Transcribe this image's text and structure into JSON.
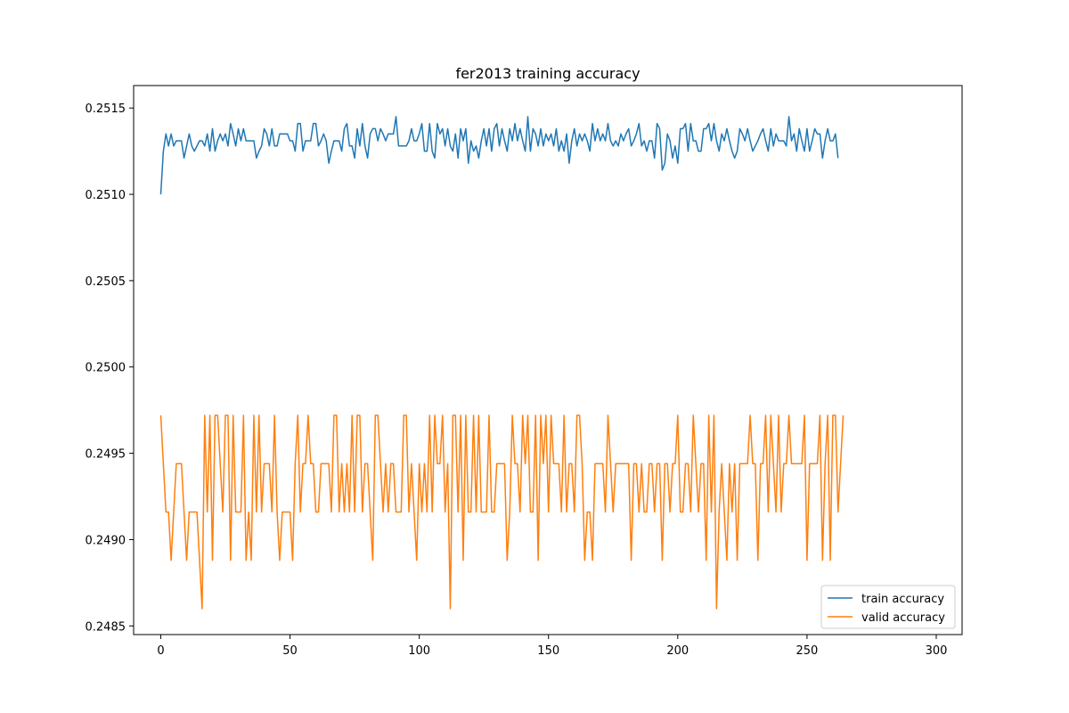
{
  "chart_data": {
    "type": "line",
    "title": "fer2013 training accuracy",
    "xlabel": "",
    "ylabel": "",
    "xlim": [
      -10.5,
      310
    ],
    "ylim": [
      0.24845,
      0.25163
    ],
    "x_ticks": [
      0,
      50,
      100,
      150,
      200,
      250,
      300
    ],
    "y_ticks": [
      0.2485,
      0.249,
      0.2495,
      0.25,
      0.2505,
      0.251,
      0.2515
    ],
    "y_tick_labels": [
      "0.2485",
      "0.2490",
      "0.2495",
      "0.2500",
      "0.2505",
      "0.2510",
      "0.2515"
    ],
    "grid": false,
    "legend_position": "lower-right",
    "series": [
      {
        "name": "train accuracy",
        "color": "#1f77b4",
        "values": [
          0.251,
          0.25125,
          0.25135,
          0.25128,
          0.25135,
          0.25128,
          0.25131,
          0.25131,
          0.25131,
          0.25121,
          0.25128,
          0.25135,
          0.25128,
          0.25125,
          0.25128,
          0.25131,
          0.25131,
          0.25128,
          0.25135,
          0.25125,
          0.25138,
          0.25125,
          0.25131,
          0.25135,
          0.25131,
          0.25135,
          0.25128,
          0.25141,
          0.25135,
          0.25128,
          0.25138,
          0.25131,
          0.25138,
          0.25131,
          0.25131,
          0.25131,
          0.25131,
          0.25121,
          0.25125,
          0.25128,
          0.25138,
          0.25135,
          0.25128,
          0.25138,
          0.25128,
          0.25128,
          0.25135,
          0.25135,
          0.25135,
          0.25135,
          0.25131,
          0.25131,
          0.25125,
          0.25141,
          0.25141,
          0.25125,
          0.25131,
          0.25131,
          0.25131,
          0.25141,
          0.25141,
          0.25128,
          0.25131,
          0.25135,
          0.25131,
          0.25118,
          0.25125,
          0.25131,
          0.25131,
          0.25131,
          0.25125,
          0.25138,
          0.25141,
          0.25128,
          0.25128,
          0.25121,
          0.25138,
          0.25128,
          0.25141,
          0.25128,
          0.25121,
          0.25135,
          0.25138,
          0.25138,
          0.25131,
          0.25138,
          0.25135,
          0.25131,
          0.25135,
          0.25135,
          0.25135,
          0.25145,
          0.25128,
          0.25128,
          0.25128,
          0.25128,
          0.25131,
          0.25138,
          0.25131,
          0.25131,
          0.25135,
          0.25141,
          0.25125,
          0.25125,
          0.25141,
          0.25125,
          0.25121,
          0.25141,
          0.25135,
          0.25138,
          0.25128,
          0.25138,
          0.25128,
          0.25125,
          0.25135,
          0.25121,
          0.25138,
          0.25131,
          0.25138,
          0.25118,
          0.25131,
          0.25125,
          0.25128,
          0.25121,
          0.25131,
          0.25138,
          0.25128,
          0.25138,
          0.25125,
          0.25138,
          0.25141,
          0.25128,
          0.25138,
          0.25131,
          0.25125,
          0.25138,
          0.25131,
          0.25141,
          0.25131,
          0.25138,
          0.25131,
          0.25125,
          0.25145,
          0.25125,
          0.25138,
          0.25135,
          0.25128,
          0.25138,
          0.25128,
          0.25135,
          0.25131,
          0.25135,
          0.25128,
          0.25138,
          0.25125,
          0.25131,
          0.25125,
          0.25135,
          0.25118,
          0.25131,
          0.25138,
          0.25128,
          0.25135,
          0.25131,
          0.25135,
          0.25131,
          0.25125,
          0.25141,
          0.25131,
          0.25138,
          0.25131,
          0.25135,
          0.25131,
          0.25141,
          0.25131,
          0.25128,
          0.25131,
          0.25128,
          0.25135,
          0.25131,
          0.25135,
          0.25138,
          0.25128,
          0.25131,
          0.25135,
          0.25141,
          0.25128,
          0.25131,
          0.25125,
          0.25131,
          0.25131,
          0.25121,
          0.25141,
          0.25138,
          0.25114,
          0.25118,
          0.25135,
          0.25131,
          0.25121,
          0.25128,
          0.25118,
          0.25138,
          0.25138,
          0.25141,
          0.25125,
          0.25141,
          0.25131,
          0.25131,
          0.25125,
          0.25125,
          0.25138,
          0.25138,
          0.25141,
          0.25131,
          0.25141,
          0.25131,
          0.25125,
          0.25135,
          0.25131,
          0.25138,
          0.25131,
          0.25125,
          0.25121,
          0.25125,
          0.25138,
          0.25135,
          0.25131,
          0.25138,
          0.25131,
          0.25125,
          0.25128,
          0.25131,
          0.25135,
          0.25138,
          0.25131,
          0.25125,
          0.25138,
          0.25128,
          0.25135,
          0.25131,
          0.25131,
          0.25131,
          0.25128,
          0.25145,
          0.25131,
          0.25135,
          0.25125,
          0.25138,
          0.25131,
          0.25125,
          0.25138,
          0.25125,
          0.25131,
          0.25138,
          0.25135,
          0.25135,
          0.25121,
          0.25131,
          0.25138,
          0.25131,
          0.25131,
          0.25135,
          0.25121
        ]
      },
      {
        "name": "valid accuracy",
        "color": "#ff7f0e",
        "values": [
          0.24972,
          0.24944,
          0.24916,
          0.24916,
          0.24888,
          0.24916,
          0.24944,
          0.24944,
          0.24944,
          0.24916,
          0.24888,
          0.24916,
          0.24916,
          0.24916,
          0.24916,
          0.24888,
          0.2486,
          0.24972,
          0.24916,
          0.24972,
          0.24888,
          0.24972,
          0.24972,
          0.24944,
          0.24916,
          0.24972,
          0.24972,
          0.24888,
          0.24972,
          0.24916,
          0.24916,
          0.24916,
          0.24972,
          0.24888,
          0.24916,
          0.24888,
          0.24972,
          0.24916,
          0.24972,
          0.24916,
          0.24944,
          0.24944,
          0.24944,
          0.24916,
          0.24972,
          0.24916,
          0.24888,
          0.24916,
          0.24916,
          0.24916,
          0.24916,
          0.24888,
          0.24944,
          0.24972,
          0.24916,
          0.24944,
          0.24944,
          0.24972,
          0.24944,
          0.24944,
          0.24916,
          0.24916,
          0.24944,
          0.24944,
          0.24944,
          0.24944,
          0.24916,
          0.24972,
          0.24972,
          0.24916,
          0.24944,
          0.24916,
          0.24944,
          0.24916,
          0.24972,
          0.24916,
          0.24972,
          0.24972,
          0.24916,
          0.24944,
          0.24944,
          0.24916,
          0.24888,
          0.24972,
          0.24972,
          0.24944,
          0.24916,
          0.24944,
          0.24916,
          0.24944,
          0.24944,
          0.24916,
          0.24916,
          0.24916,
          0.24972,
          0.24972,
          0.24916,
          0.24944,
          0.24916,
          0.24888,
          0.24944,
          0.24916,
          0.24944,
          0.24916,
          0.24972,
          0.24916,
          0.24972,
          0.24944,
          0.24944,
          0.24972,
          0.24916,
          0.24944,
          0.2486,
          0.24972,
          0.24972,
          0.24916,
          0.24972,
          0.24888,
          0.24972,
          0.24916,
          0.24916,
          0.24972,
          0.24916,
          0.24972,
          0.24916,
          0.24916,
          0.24916,
          0.24972,
          0.24916,
          0.24916,
          0.24944,
          0.24944,
          0.24944,
          0.24944,
          0.24888,
          0.24916,
          0.24972,
          0.24944,
          0.24944,
          0.24916,
          0.24972,
          0.24944,
          0.24972,
          0.24916,
          0.24916,
          0.24972,
          0.24888,
          0.24972,
          0.24944,
          0.24972,
          0.24916,
          0.24972,
          0.24944,
          0.24944,
          0.24944,
          0.24916,
          0.24972,
          0.24916,
          0.24944,
          0.24944,
          0.24916,
          0.24972,
          0.24972,
          0.24944,
          0.24888,
          0.24916,
          0.24916,
          0.24888,
          0.24944,
          0.24944,
          0.24944,
          0.24944,
          0.24916,
          0.24972,
          0.24944,
          0.24916,
          0.24944,
          0.24944,
          0.24944,
          0.24944,
          0.24944,
          0.24944,
          0.24888,
          0.24944,
          0.24944,
          0.24916,
          0.24944,
          0.24916,
          0.24916,
          0.24944,
          0.24944,
          0.24916,
          0.24944,
          0.24944,
          0.24888,
          0.24944,
          0.24944,
          0.24916,
          0.24944,
          0.24944,
          0.24972,
          0.24916,
          0.24916,
          0.24944,
          0.24944,
          0.24916,
          0.24972,
          0.24944,
          0.24916,
          0.24944,
          0.24944,
          0.24888,
          0.24972,
          0.24916,
          0.24972,
          0.2486,
          0.24916,
          0.24944,
          0.24916,
          0.24888,
          0.24944,
          0.24916,
          0.24944,
          0.24888,
          0.24944,
          0.24944,
          0.24944,
          0.24944,
          0.24972,
          0.24944,
          0.24944,
          0.24888,
          0.24944,
          0.24944,
          0.24972,
          0.24916,
          0.24972,
          0.24944,
          0.24916,
          0.24972,
          0.24916,
          0.24944,
          0.24944,
          0.24972,
          0.24944,
          0.24944,
          0.24944,
          0.24944,
          0.24944,
          0.24972,
          0.24888,
          0.24944,
          0.24944,
          0.24944,
          0.24944,
          0.24972,
          0.24888,
          0.24944,
          0.24972,
          0.24888,
          0.24972,
          0.24972,
          0.24916,
          0.24944,
          0.24972
        ]
      }
    ]
  }
}
